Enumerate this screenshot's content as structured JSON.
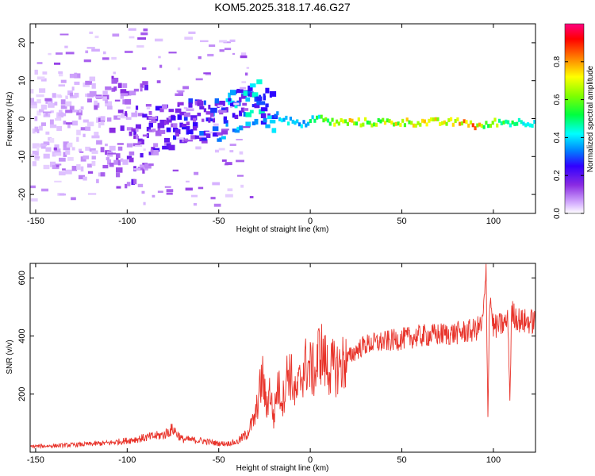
{
  "title": "KOM5.2025.318.17.46.G27",
  "chart_data": [
    {
      "type": "heatmap",
      "title": "KOM5.2025.318.17.46.G27",
      "xlabel": "Height of straight line (km)",
      "ylabel": "Frequency (Hz)",
      "xlim": [
        -153,
        123
      ],
      "ylim": [
        -25,
        25
      ],
      "x_ticks": [
        -150,
        -100,
        -50,
        0,
        50,
        100
      ],
      "x_tick_labels": [
        "-150",
        "-100",
        "-50",
        "0",
        "50",
        "100"
      ],
      "y_ticks": [
        -20,
        -10,
        0,
        10,
        20
      ],
      "y_tick_labels": [
        "-20",
        "-10",
        "0",
        "10",
        "20"
      ],
      "colorbar": {
        "label": "Normalized spectral amplitude",
        "range": [
          0,
          1
        ],
        "ticks": [
          0.0,
          0.2,
          0.4,
          0.6,
          0.8
        ],
        "tick_labels": [
          "0.0",
          "0.2",
          "0.4",
          "0.6",
          "0.8"
        ],
        "colors": [
          "#ffffff",
          "#d8b4ff",
          "#8a2be2",
          "#3000ff",
          "#0080ff",
          "#00ffff",
          "#00ff40",
          "#80ff00",
          "#ffff00",
          "#ff8000",
          "#ff0000",
          "#ff0080"
        ]
      },
      "ridge": {
        "x": [
          -150,
          -130,
          -110,
          -100,
          -90,
          -80,
          -70,
          -60,
          -50,
          -40,
          -35,
          -30,
          -25,
          -20,
          -15,
          -10,
          -5,
          0,
          5,
          10,
          20,
          30,
          40,
          50,
          60,
          70,
          80,
          85,
          90,
          95,
          100,
          110,
          122
        ],
        "y": [
          -1,
          -2,
          -3,
          -4,
          -4,
          -2,
          -1,
          -1,
          0,
          2,
          3,
          4,
          2,
          1,
          0,
          -1,
          -2,
          0,
          0,
          -1,
          -1,
          -1,
          -1,
          -1,
          -1,
          -1,
          -1,
          -1,
          -2,
          -2,
          -1,
          -1,
          -1
        ],
        "amp": [
          0.08,
          0.1,
          0.14,
          0.18,
          0.2,
          0.22,
          0.24,
          0.28,
          0.32,
          0.38,
          0.4,
          0.42,
          0.36,
          0.38,
          0.42,
          0.45,
          0.4,
          0.48,
          0.52,
          0.6,
          0.7,
          0.62,
          0.65,
          0.7,
          0.68,
          0.72,
          0.7,
          0.82,
          0.76,
          0.6,
          0.62,
          0.5,
          0.45
        ]
      }
    },
    {
      "type": "line",
      "xlabel": "Height of straight line (km)",
      "ylabel": "SNR (v/v)",
      "xlim": [
        -153,
        123
      ],
      "ylim": [
        0,
        650
      ],
      "x_ticks": [
        -150,
        -100,
        -50,
        0,
        50,
        100
      ],
      "x_tick_labels": [
        "-150",
        "-100",
        "-50",
        "0",
        "50",
        "100"
      ],
      "y_ticks": [
        200,
        400,
        600
      ],
      "y_tick_labels": [
        "200",
        "400",
        "600"
      ],
      "series": [
        {
          "name": "SNR",
          "color": "#e8332a",
          "x": [
            -153,
            -140,
            -130,
            -120,
            -110,
            -100,
            -90,
            -80,
            -75,
            -70,
            -60,
            -50,
            -45,
            -40,
            -35,
            -30,
            -28,
            -26,
            -24,
            -22,
            -20,
            -18,
            -15,
            -12,
            -10,
            -8,
            -5,
            -3,
            0,
            3,
            5,
            8,
            10,
            15,
            20,
            25,
            30,
            40,
            50,
            60,
            70,
            80,
            90,
            94,
            96,
            97,
            98,
            100,
            105,
            108,
            109,
            110,
            115,
            123
          ],
          "y": [
            20,
            22,
            25,
            28,
            32,
            40,
            50,
            60,
            80,
            45,
            40,
            30,
            30,
            35,
            60,
            120,
            200,
            260,
            150,
            220,
            110,
            230,
            180,
            290,
            250,
            190,
            260,
            300,
            290,
            270,
            360,
            310,
            290,
            290,
            320,
            350,
            370,
            380,
            390,
            400,
            405,
            410,
            420,
            440,
            600,
            130,
            550,
            430,
            440,
            450,
            180,
            480,
            450,
            450
          ]
        }
      ]
    }
  ]
}
